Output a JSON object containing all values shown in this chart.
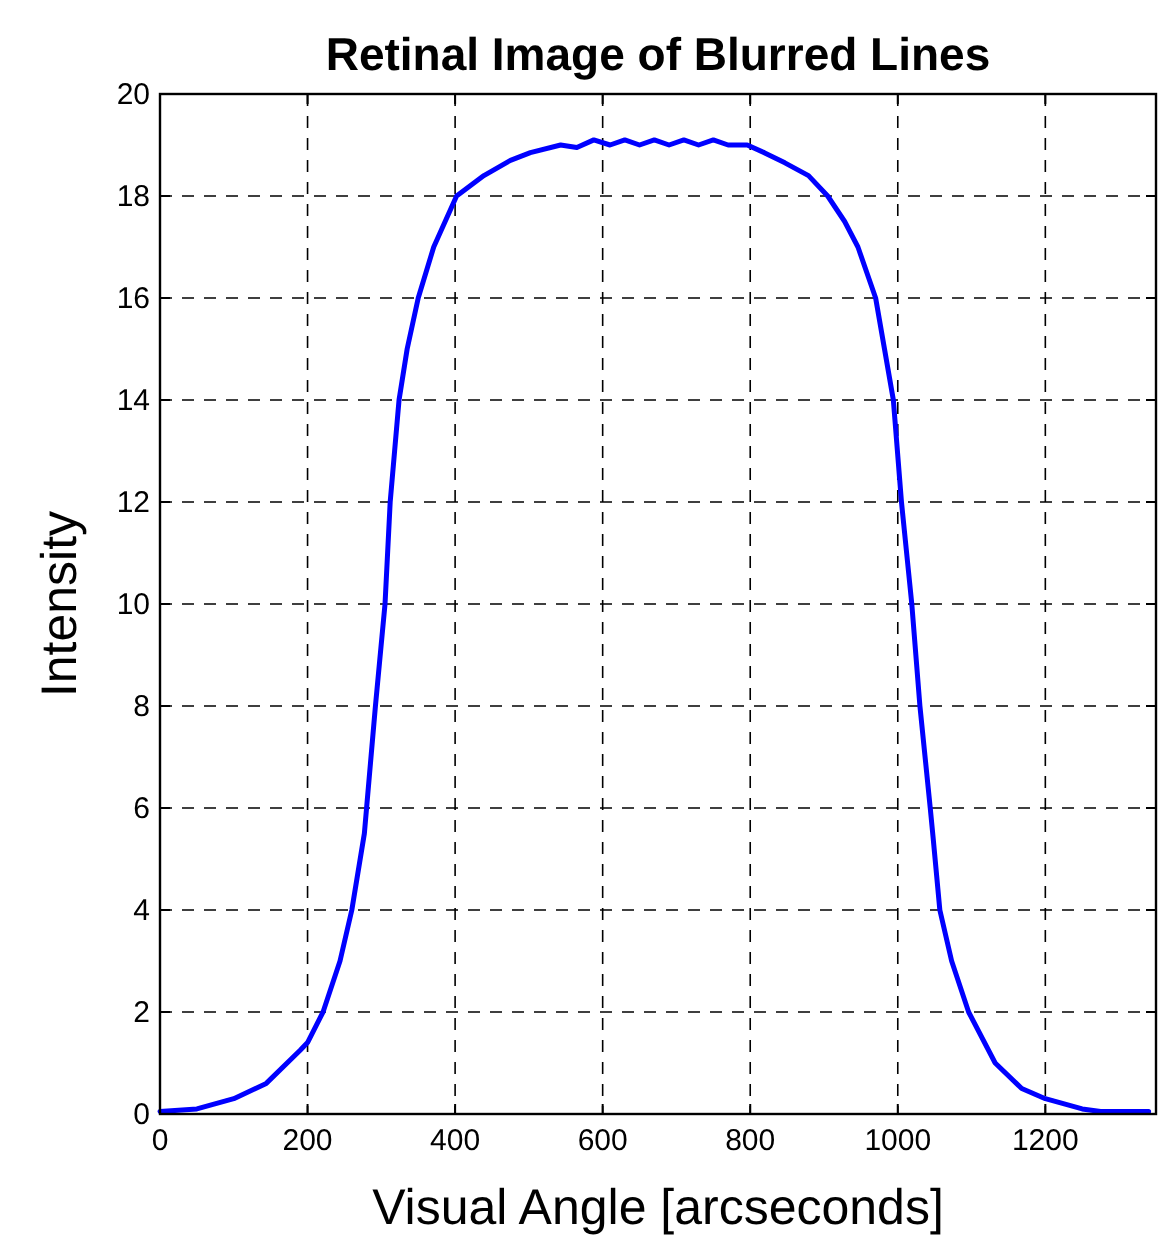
{
  "chart_data": {
    "type": "line",
    "title": "Retinal Image of Blurred Lines",
    "xlabel": "Visual Angle [arcseconds]",
    "ylabel": "Intensity",
    "xlim": [
      0,
      1350
    ],
    "ylim": [
      0,
      20
    ],
    "xticks": [
      0,
      200,
      400,
      600,
      800,
      1000,
      1200
    ],
    "yticks": [
      0,
      2,
      4,
      6,
      8,
      10,
      12,
      14,
      16,
      18,
      20
    ],
    "grid": true,
    "line_style": "solid",
    "marker": "none",
    "series": [
      {
        "color": "#0000ff",
        "x": [
          0,
          50,
          100,
          144,
          190,
          200,
          221,
          244,
          260,
          277,
          280,
          292,
          305,
          312,
          318,
          324,
          335,
          350,
          371,
          402,
          439,
          475,
          502,
          543,
          565,
          588,
          610,
          630,
          650,
          670,
          690,
          710,
          730,
          750,
          770,
          796,
          819,
          847,
          879,
          905,
          928,
          946,
          970,
          982,
          994,
          1005,
          1019,
          1030,
          1044,
          1048,
          1057,
          1073,
          1096,
          1132,
          1168,
          1200,
          1250,
          1275,
          1340
        ],
        "values": [
          0.05,
          0.1,
          0.3,
          0.6,
          1.25,
          1.4,
          2,
          3,
          4,
          5.5,
          6,
          8,
          10,
          12,
          13,
          14,
          15,
          16,
          17,
          18,
          18.4,
          18.7,
          18.85,
          19,
          18.95,
          19.1,
          19,
          19.1,
          19,
          19.1,
          19,
          19.1,
          19,
          19.1,
          19,
          19,
          18.85,
          18.65,
          18.4,
          18,
          17.5,
          17,
          16,
          15,
          14,
          12,
          10,
          8,
          6,
          5.4,
          4,
          3,
          2,
          1,
          0.5,
          0.3,
          0.1,
          0.05,
          0.05
        ]
      }
    ]
  }
}
